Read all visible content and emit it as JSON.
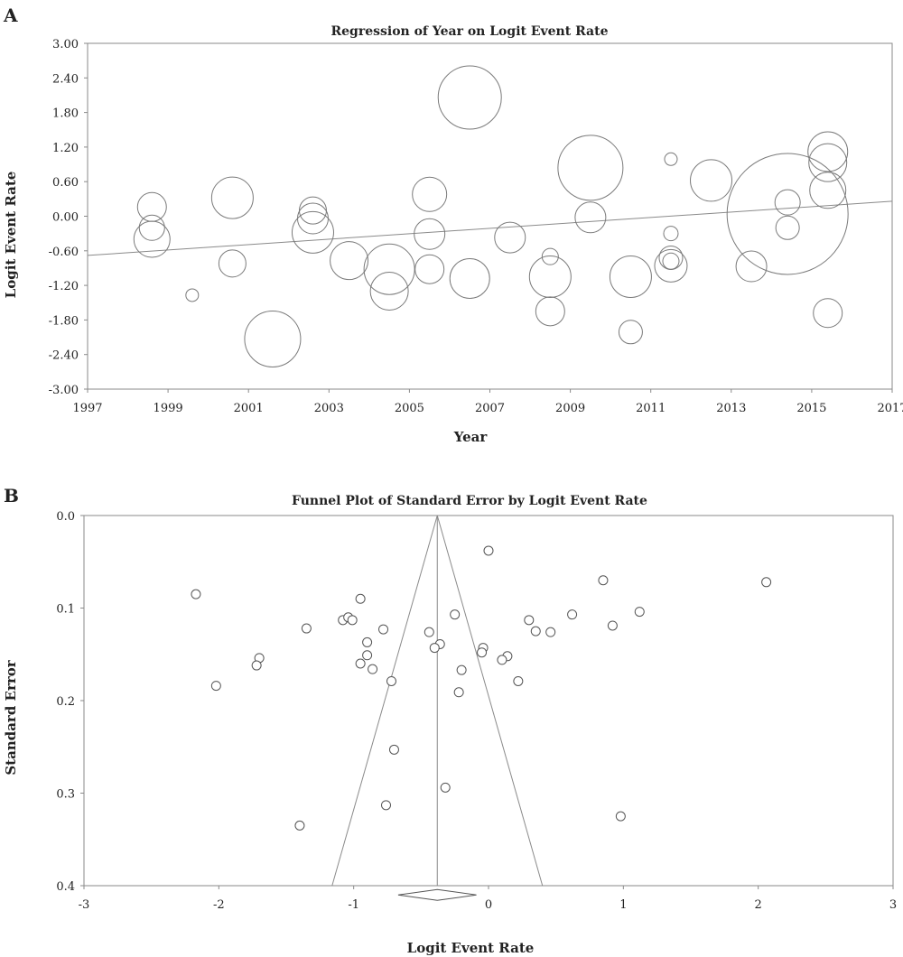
{
  "chart_data": [
    {
      "panel": "A",
      "type": "scatter",
      "title": "Regression of Year on Logit Event Rate",
      "xlabel": "Year",
      "ylabel": "Logit Event Rate",
      "xlim": [
        1997,
        2017
      ],
      "ylim": [
        -3.0,
        3.0
      ],
      "xticks": [
        "1997",
        "1999",
        "2001",
        "2003",
        "2005",
        "2007",
        "2009",
        "2011",
        "2013",
        "2015",
        "2017"
      ],
      "yticks": [
        "3.00",
        "2.40",
        "1.80",
        "1.20",
        "0.60",
        "0.00",
        "-0.60",
        "-1.20",
        "-1.80",
        "-2.40",
        "-3.00"
      ],
      "regression_line": {
        "x": [
          1997,
          2017
        ],
        "y": [
          -0.68,
          0.26
        ]
      },
      "points": [
        {
          "x": 1998.6,
          "y": 0.16,
          "weight": 16
        },
        {
          "x": 1998.6,
          "y": -0.2,
          "weight": 14
        },
        {
          "x": 1998.6,
          "y": -0.4,
          "weight": 20
        },
        {
          "x": 1999.6,
          "y": -1.37,
          "weight": 7
        },
        {
          "x": 2000.6,
          "y": 0.32,
          "weight": 23
        },
        {
          "x": 2000.6,
          "y": -0.82,
          "weight": 15
        },
        {
          "x": 2001.6,
          "y": -2.13,
          "weight": 31
        },
        {
          "x": 2002.6,
          "y": 0.1,
          "weight": 15
        },
        {
          "x": 2002.6,
          "y": -0.04,
          "weight": 17
        },
        {
          "x": 2002.6,
          "y": -0.28,
          "weight": 23
        },
        {
          "x": 2003.5,
          "y": -0.77,
          "weight": 21
        },
        {
          "x": 2004.5,
          "y": -0.92,
          "weight": 28
        },
        {
          "x": 2004.5,
          "y": -1.3,
          "weight": 21
        },
        {
          "x": 2005.5,
          "y": 0.38,
          "weight": 19
        },
        {
          "x": 2005.5,
          "y": -0.31,
          "weight": 17
        },
        {
          "x": 2005.5,
          "y": -0.92,
          "weight": 16
        },
        {
          "x": 2006.5,
          "y": 2.06,
          "weight": 35
        },
        {
          "x": 2006.5,
          "y": -1.08,
          "weight": 22
        },
        {
          "x": 2007.5,
          "y": -0.37,
          "weight": 17
        },
        {
          "x": 2008.5,
          "y": -0.7,
          "weight": 9
        },
        {
          "x": 2008.5,
          "y": -1.05,
          "weight": 23
        },
        {
          "x": 2008.5,
          "y": -1.65,
          "weight": 16
        },
        {
          "x": 2009.5,
          "y": 0.84,
          "weight": 36
        },
        {
          "x": 2009.5,
          "y": -0.02,
          "weight": 17
        },
        {
          "x": 2010.5,
          "y": -1.05,
          "weight": 23
        },
        {
          "x": 2010.5,
          "y": -2.01,
          "weight": 13
        },
        {
          "x": 2011.5,
          "y": 0.99,
          "weight": 7
        },
        {
          "x": 2011.5,
          "y": -0.3,
          "weight": 8
        },
        {
          "x": 2011.5,
          "y": -0.72,
          "weight": 13
        },
        {
          "x": 2011.5,
          "y": -0.78,
          "weight": 9
        },
        {
          "x": 2011.5,
          "y": -0.86,
          "weight": 18
        },
        {
          "x": 2012.5,
          "y": 0.62,
          "weight": 23
        },
        {
          "x": 2013.5,
          "y": -0.87,
          "weight": 17
        },
        {
          "x": 2014.4,
          "y": 0.04,
          "weight": 67
        },
        {
          "x": 2014.4,
          "y": 0.24,
          "weight": 14
        },
        {
          "x": 2014.4,
          "y": -0.2,
          "weight": 13
        },
        {
          "x": 2015.4,
          "y": 1.12,
          "weight": 22
        },
        {
          "x": 2015.4,
          "y": 0.93,
          "weight": 21
        },
        {
          "x": 2015.4,
          "y": 0.45,
          "weight": 20
        },
        {
          "x": 2015.4,
          "y": -1.68,
          "weight": 16
        }
      ]
    },
    {
      "panel": "B",
      "type": "scatter",
      "title": "Funnel Plot of Standard Error by Logit Event Rate",
      "xlabel": "Logit Event Rate",
      "ylabel": "Standard Error",
      "xlim": [
        -3,
        3
      ],
      "ylim": [
        0.0,
        0.4
      ],
      "y_inverted": true,
      "xticks": [
        "-3",
        "-2",
        "-1",
        "0",
        "1",
        "2",
        "3"
      ],
      "yticks": [
        "0.0",
        "0.1",
        "0.2",
        "0.3",
        "0.4"
      ],
      "pooled_estimate": -0.38,
      "funnel": {
        "apex": [
          -0.38,
          0.0
        ],
        "base_left": [
          -1.16,
          0.4
        ],
        "base_right": [
          0.4,
          0.4
        ]
      },
      "diamond": {
        "center": -0.38,
        "low": -0.67,
        "high": -0.09,
        "y": 0.41
      },
      "points": [
        {
          "x": 0.0,
          "y": 0.038
        },
        {
          "x": -2.17,
          "y": 0.085
        },
        {
          "x": 0.85,
          "y": 0.07
        },
        {
          "x": 2.06,
          "y": 0.072
        },
        {
          "x": -0.95,
          "y": 0.09
        },
        {
          "x": 1.12,
          "y": 0.104
        },
        {
          "x": 0.62,
          "y": 0.107
        },
        {
          "x": -0.25,
          "y": 0.107
        },
        {
          "x": -1.08,
          "y": 0.113
        },
        {
          "x": -1.04,
          "y": 0.11
        },
        {
          "x": -1.01,
          "y": 0.113
        },
        {
          "x": 0.3,
          "y": 0.113
        },
        {
          "x": 0.92,
          "y": 0.119
        },
        {
          "x": -1.35,
          "y": 0.122
        },
        {
          "x": -0.78,
          "y": 0.123
        },
        {
          "x": 0.35,
          "y": 0.125
        },
        {
          "x": 0.46,
          "y": 0.126
        },
        {
          "x": -0.44,
          "y": 0.126
        },
        {
          "x": -0.9,
          "y": 0.137
        },
        {
          "x": -0.36,
          "y": 0.139
        },
        {
          "x": -0.4,
          "y": 0.143
        },
        {
          "x": -0.04,
          "y": 0.143
        },
        {
          "x": -0.05,
          "y": 0.148
        },
        {
          "x": -0.9,
          "y": 0.151
        },
        {
          "x": 0.14,
          "y": 0.152
        },
        {
          "x": -1.7,
          "y": 0.154
        },
        {
          "x": 0.1,
          "y": 0.156
        },
        {
          "x": -1.72,
          "y": 0.162
        },
        {
          "x": -0.95,
          "y": 0.16
        },
        {
          "x": -0.86,
          "y": 0.166
        },
        {
          "x": -0.2,
          "y": 0.167
        },
        {
          "x": -0.72,
          "y": 0.179
        },
        {
          "x": 0.22,
          "y": 0.179
        },
        {
          "x": -2.02,
          "y": 0.184
        },
        {
          "x": -0.22,
          "y": 0.191
        },
        {
          "x": -0.7,
          "y": 0.253
        },
        {
          "x": -0.32,
          "y": 0.294
        },
        {
          "x": -0.76,
          "y": 0.313
        },
        {
          "x": 0.98,
          "y": 0.325
        },
        {
          "x": -1.4,
          "y": 0.335
        }
      ]
    }
  ]
}
